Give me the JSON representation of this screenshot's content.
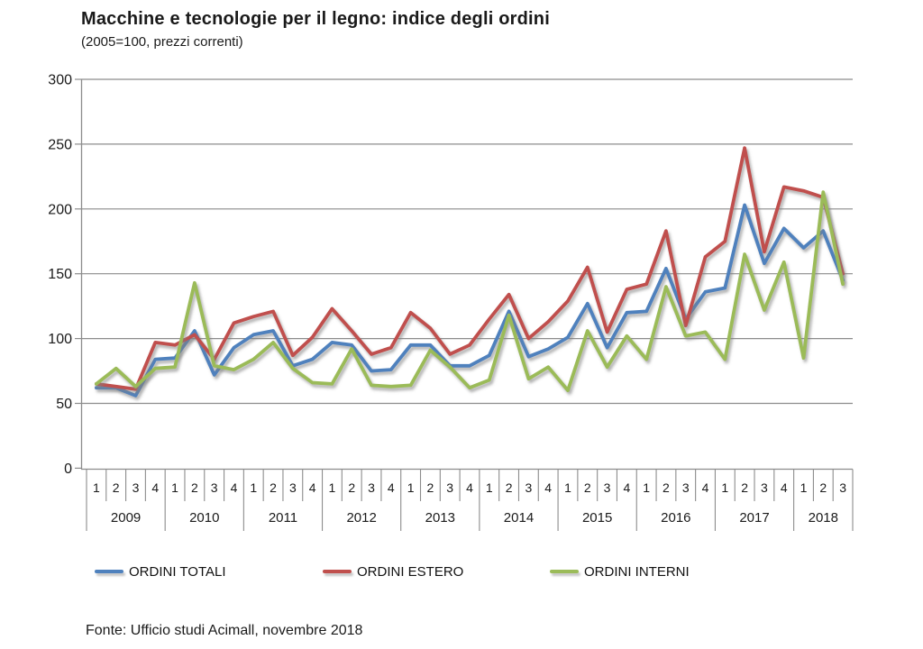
{
  "header": {
    "title": "Macchine e tecnologie per il legno: indice degli ordini",
    "subtitle": "(2005=100, prezzi correnti)"
  },
  "footer": {
    "source": "Fonte: Ufficio studi Acimall, novembre 2018"
  },
  "chart_data": {
    "type": "line",
    "title": "Macchine e tecnologie per il legno: indice degli ordini",
    "subtitle": "(2005=100, prezzi correnti)",
    "xlabel": "",
    "ylabel": "",
    "ylim": [
      0,
      300
    ],
    "ytick_step": 50,
    "grid": true,
    "legend_position": "bottom",
    "axis_color": "#8c8c8c",
    "text_color": "#1a1a1a",
    "years": [
      {
        "label": "2009",
        "quarters": [
          "1",
          "2",
          "3",
          "4"
        ]
      },
      {
        "label": "2010",
        "quarters": [
          "1",
          "2",
          "3",
          "4"
        ]
      },
      {
        "label": "2011",
        "quarters": [
          "1",
          "2",
          "3",
          "4"
        ]
      },
      {
        "label": "2012",
        "quarters": [
          "1",
          "2",
          "3",
          "4"
        ]
      },
      {
        "label": "2013",
        "quarters": [
          "1",
          "2",
          "3",
          "4"
        ]
      },
      {
        "label": "2014",
        "quarters": [
          "1",
          "2",
          "3",
          "4"
        ]
      },
      {
        "label": "2015",
        "quarters": [
          "1",
          "2",
          "3",
          "4"
        ]
      },
      {
        "label": "2016",
        "quarters": [
          "1",
          "2",
          "3",
          "4"
        ]
      },
      {
        "label": "2017",
        "quarters": [
          "1",
          "2",
          "3",
          "4"
        ]
      },
      {
        "label": "2018",
        "quarters": [
          "1",
          "2",
          "3"
        ]
      }
    ],
    "series": [
      {
        "name": "ORDINI TOTALI",
        "color": "#4F81BD",
        "values": [
          62,
          62,
          56,
          84,
          85,
          106,
          72,
          93,
          103,
          106,
          79,
          84,
          97,
          95,
          75,
          76,
          95,
          95,
          79,
          79,
          87,
          121,
          86,
          92,
          101,
          127,
          93,
          120,
          121,
          154,
          115,
          136,
          139,
          203,
          158,
          185,
          170,
          183,
          145
        ]
      },
      {
        "name": "ORDINI ESTERO",
        "color": "#C0504D",
        "values": [
          65,
          63,
          61,
          97,
          95,
          103,
          84,
          112,
          117,
          121,
          87,
          101,
          123,
          106,
          88,
          93,
          120,
          108,
          88,
          95,
          115,
          134,
          100,
          113,
          129,
          155,
          105,
          138,
          142,
          183,
          110,
          163,
          175,
          247,
          167,
          217,
          214,
          209,
          150
        ]
      },
      {
        "name": "ORDINI INTERNI",
        "color": "#9BBB59",
        "values": [
          65,
          77,
          63,
          77,
          78,
          143,
          79,
          76,
          84,
          97,
          77,
          66,
          65,
          92,
          64,
          63,
          64,
          91,
          78,
          62,
          68,
          118,
          69,
          78,
          60,
          106,
          78,
          102,
          84,
          140,
          102,
          105,
          84,
          165,
          122,
          159,
          85,
          213,
          142
        ]
      }
    ]
  }
}
